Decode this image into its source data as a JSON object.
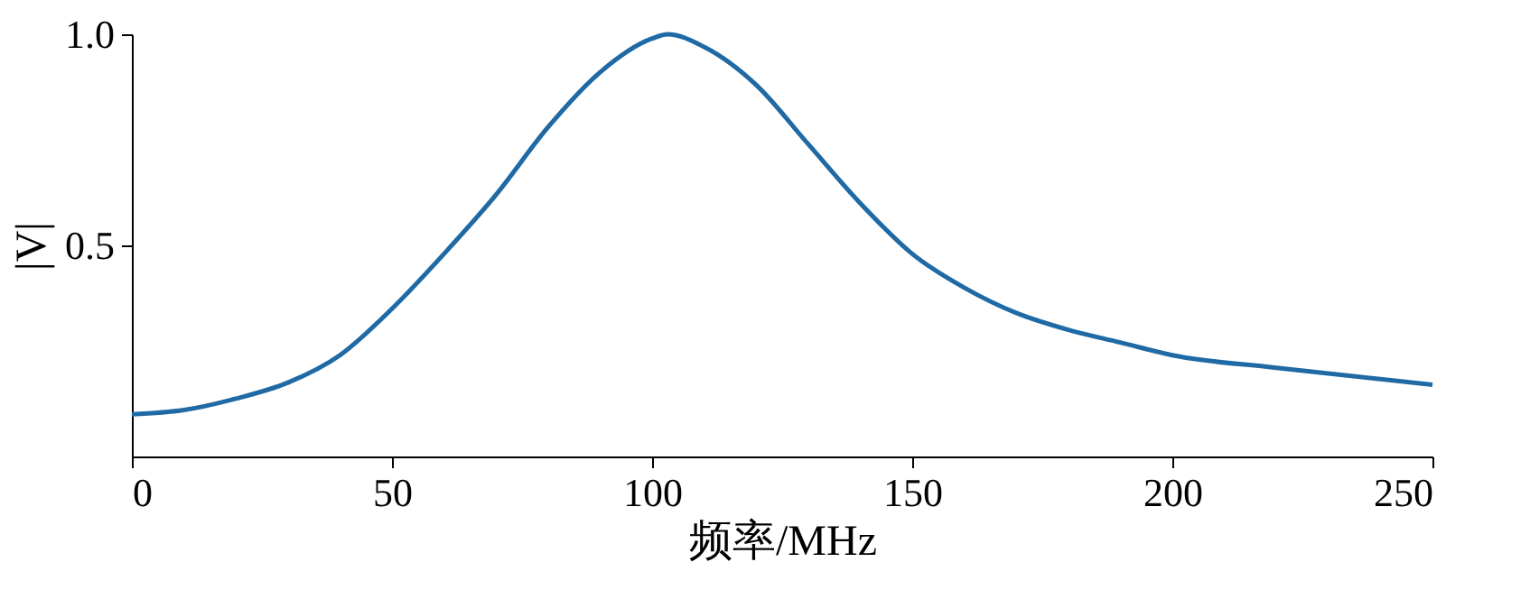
{
  "chart_data": {
    "type": "line",
    "xlabel": "频率/MHz",
    "ylabel": "|V|",
    "x": [
      0,
      10,
      20,
      30,
      40,
      50,
      60,
      70,
      80,
      90,
      100,
      103,
      110,
      120,
      130,
      140,
      150,
      160,
      170,
      180,
      190,
      200,
      220,
      250
    ],
    "series": [
      {
        "color": "#1f6aa5",
        "values": [
          0.1,
          0.11,
          0.137,
          0.175,
          0.24,
          0.35,
          0.48,
          0.62,
          0.78,
          0.91,
          0.99,
          1.0,
          0.97,
          0.88,
          0.74,
          0.6,
          0.48,
          0.4,
          0.34,
          0.3,
          0.27,
          0.24,
          0.21,
          0.17
        ]
      }
    ],
    "xlim": [
      0,
      250
    ],
    "xticks": [
      0,
      50,
      100,
      150,
      200,
      250
    ],
    "ylim": [
      0,
      1
    ],
    "yticks": [
      0.5,
      {
        "value": 1,
        "label": "1.0"
      }
    ],
    "grid": false,
    "marker": "none",
    "line_style": "solid"
  }
}
